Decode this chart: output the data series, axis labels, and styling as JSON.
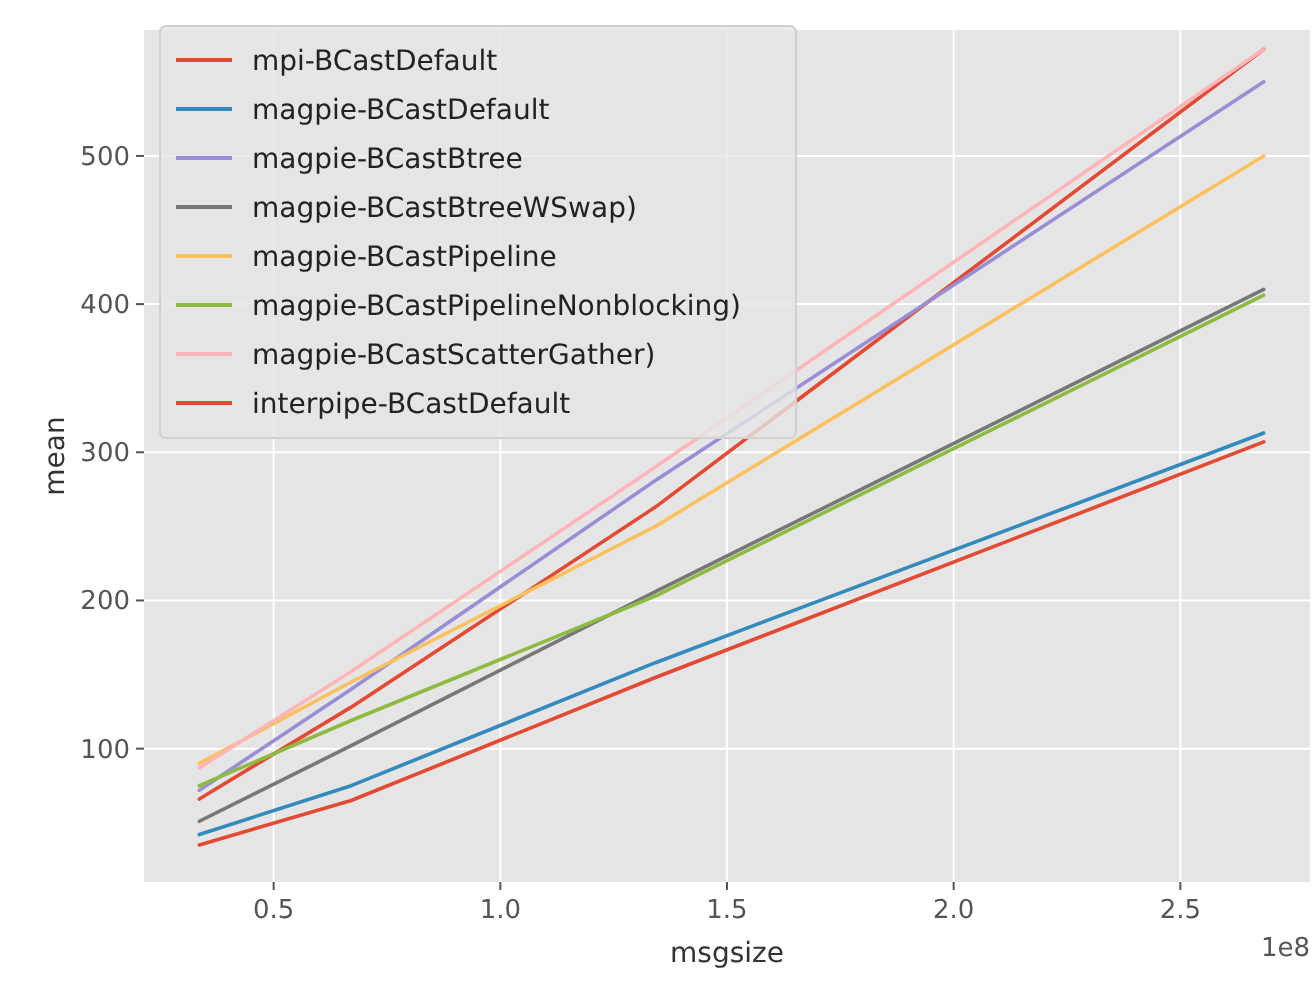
{
  "chart_data": {
    "type": "line",
    "xlabel": "msgsize",
    "ylabel": "mean",
    "x": [
      0.336,
      0.671,
      1.342,
      2.684
    ],
    "xlim": [
      0.214,
      2.786
    ],
    "ylim": [
      10,
      585
    ],
    "xticks": [
      0.5,
      {
        "value": 1,
        "label": "1.0"
      },
      1.5,
      {
        "value": 2,
        "label": "2.0"
      },
      2.5
    ],
    "yticks": [
      100,
      200,
      300,
      400,
      500
    ],
    "annotations": [
      "1e8"
    ],
    "grid": true,
    "legend": "top left",
    "series": [
      {
        "name": "mpi-BCastDefault",
        "color": "#e24a33",
        "values": [
          66,
          128,
          263,
          572
        ]
      },
      {
        "name": "magpie-BCastDefault",
        "color": "#348abd",
        "values": [
          42,
          75,
          158,
          313
        ]
      },
      {
        "name": "magpie-BCastBtree",
        "color": "#988ed5",
        "values": [
          72,
          140,
          281,
          550
        ]
      },
      {
        "name": "magpie-BCastBtreeWSwap)",
        "color": "#777777",
        "values": [
          51,
          102,
          206,
          410
        ]
      },
      {
        "name": "magpie-BCastPipeline",
        "color": "#fbc15e",
        "values": [
          90,
          145,
          250,
          500
        ]
      },
      {
        "name": "magpie-BCastPipelineNonblocking)",
        "color": "#8eba42",
        "values": [
          75,
          119,
          203,
          406
        ]
      },
      {
        "name": "magpie-BCastScatterGather)",
        "color": "#ffb5b8",
        "values": [
          87,
          152,
          290,
          572
        ]
      },
      {
        "name": "interpipe-BCastDefault",
        "color": "#e24a33",
        "values": [
          35,
          65,
          148,
          307
        ]
      }
    ]
  }
}
